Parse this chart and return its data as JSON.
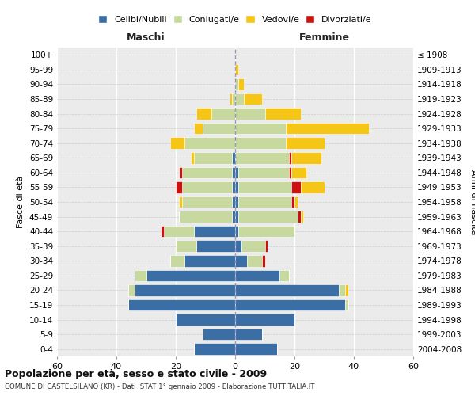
{
  "age_groups": [
    "0-4",
    "5-9",
    "10-14",
    "15-19",
    "20-24",
    "25-29",
    "30-34",
    "35-39",
    "40-44",
    "45-49",
    "50-54",
    "55-59",
    "60-64",
    "65-69",
    "70-74",
    "75-79",
    "80-84",
    "85-89",
    "90-94",
    "95-99",
    "100+"
  ],
  "birth_years": [
    "2004-2008",
    "1999-2003",
    "1994-1998",
    "1989-1993",
    "1984-1988",
    "1979-1983",
    "1974-1978",
    "1969-1973",
    "1964-1968",
    "1959-1963",
    "1954-1958",
    "1949-1953",
    "1944-1948",
    "1939-1943",
    "1934-1938",
    "1929-1933",
    "1924-1928",
    "1919-1923",
    "1914-1918",
    "1909-1913",
    "≤ 1908"
  ],
  "maschi": {
    "celibi": [
      14,
      11,
      20,
      36,
      34,
      30,
      17,
      13,
      14,
      1,
      1,
      1,
      1,
      1,
      0,
      0,
      0,
      0,
      0,
      0,
      0
    ],
    "coniugati": [
      0,
      0,
      0,
      0,
      2,
      4,
      5,
      7,
      10,
      18,
      17,
      17,
      17,
      13,
      17,
      11,
      8,
      1,
      0,
      0,
      0
    ],
    "vedovi": [
      0,
      0,
      0,
      0,
      0,
      0,
      0,
      0,
      0,
      0,
      1,
      0,
      0,
      1,
      5,
      3,
      5,
      1,
      0,
      0,
      0
    ],
    "divorziati": [
      0,
      0,
      0,
      0,
      0,
      0,
      0,
      0,
      1,
      0,
      0,
      2,
      1,
      0,
      0,
      0,
      0,
      0,
      0,
      0,
      0
    ]
  },
  "femmine": {
    "nubili": [
      14,
      9,
      20,
      37,
      35,
      15,
      4,
      2,
      1,
      1,
      1,
      1,
      1,
      0,
      0,
      0,
      0,
      0,
      0,
      0,
      0
    ],
    "coniugate": [
      0,
      0,
      0,
      1,
      2,
      3,
      5,
      8,
      19,
      20,
      18,
      18,
      17,
      18,
      17,
      17,
      10,
      3,
      1,
      0,
      0
    ],
    "vedove": [
      0,
      0,
      0,
      0,
      1,
      0,
      0,
      0,
      0,
      1,
      1,
      8,
      5,
      10,
      13,
      28,
      12,
      6,
      2,
      1,
      0
    ],
    "divorziate": [
      0,
      0,
      0,
      0,
      0,
      0,
      1,
      1,
      0,
      1,
      1,
      3,
      1,
      1,
      0,
      0,
      0,
      0,
      0,
      0,
      0
    ]
  },
  "colors": {
    "celibi_nubili": "#3a6ea5",
    "coniugati": "#c8d9a0",
    "vedovi": "#f5c518",
    "divorziati": "#cc1111"
  },
  "xlim": 60,
  "title": "Popolazione per età, sesso e stato civile - 2009",
  "subtitle": "COMUNE DI CASTELSILANO (KR) - Dati ISTAT 1° gennaio 2009 - Elaborazione TUTTITALIA.IT",
  "ylabel_left": "Fasce di età",
  "ylabel_right": "Anni di nascita",
  "xlabel_left": "Maschi",
  "xlabel_right": "Femmine",
  "bg_color": "#ebebeb"
}
